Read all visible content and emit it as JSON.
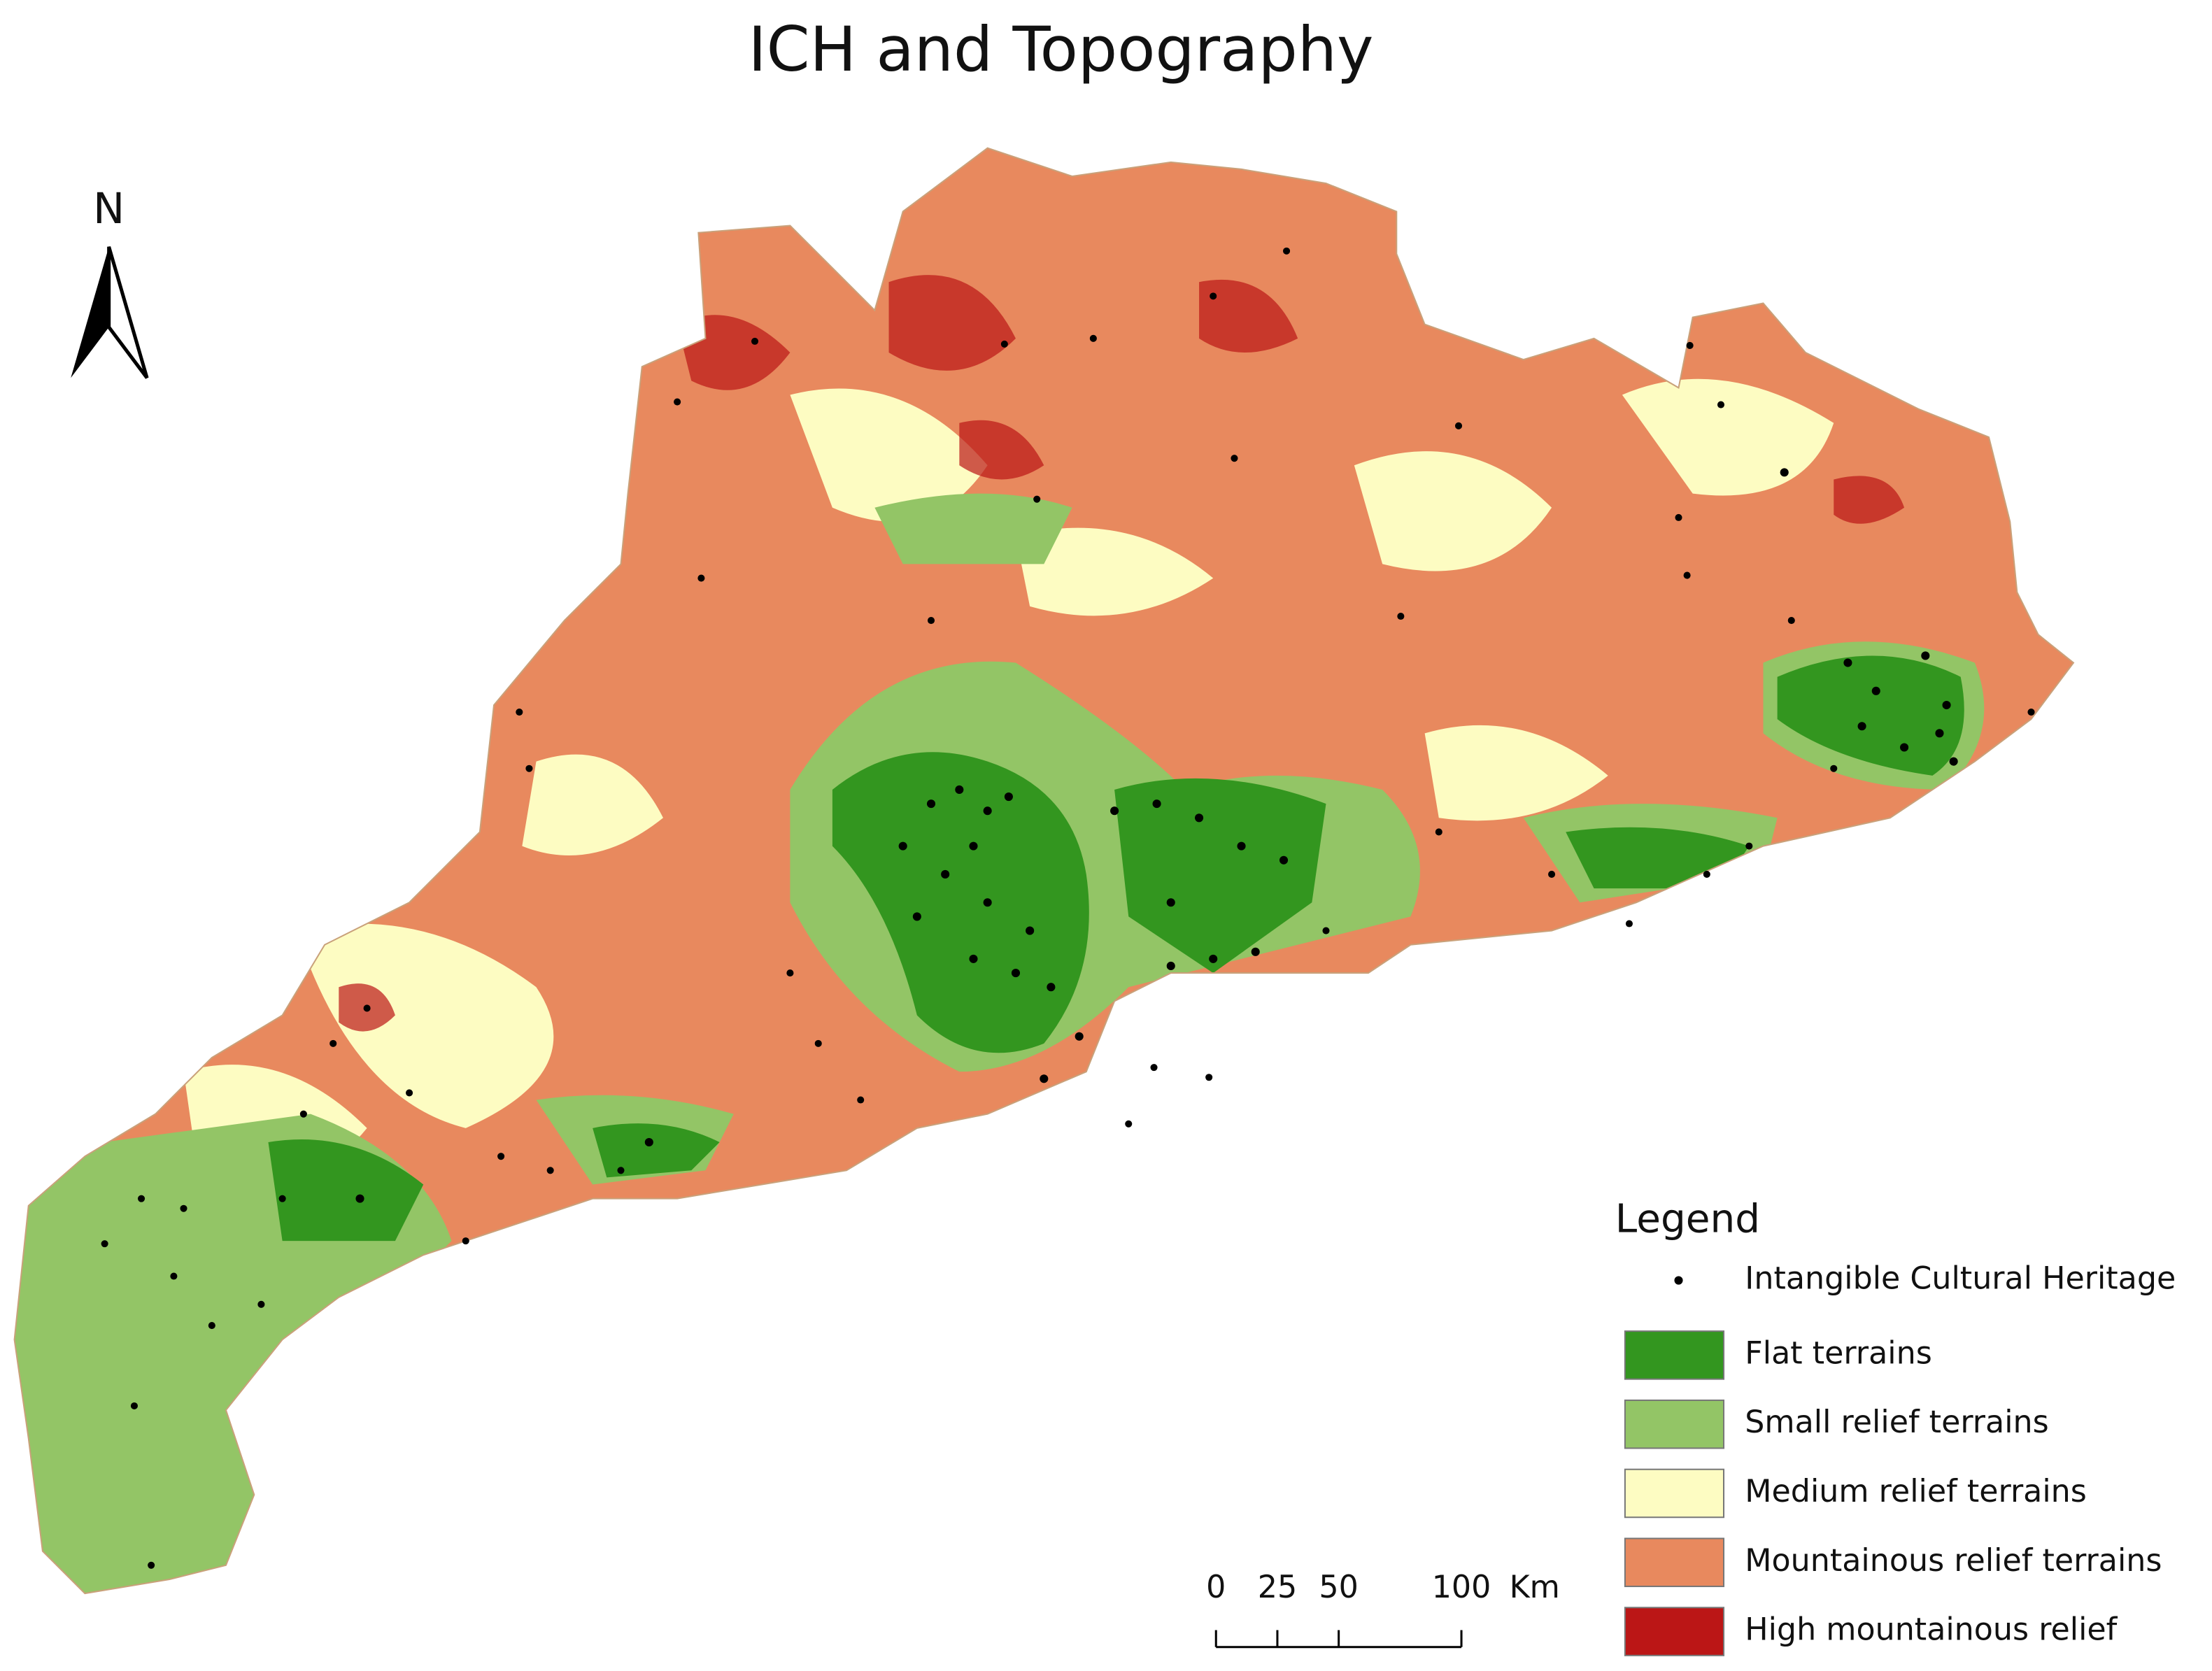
{
  "title": "ICH and Topography",
  "north_arrow": {
    "label": "N"
  },
  "legend": {
    "title": "Legend",
    "point": {
      "label": "Intangible Cultural Heritage",
      "color": "#000000"
    },
    "classes": [
      {
        "label": "Flat terrains",
        "color": "#33961f"
      },
      {
        "label": "Small relief terrains",
        "color": "#93c566"
      },
      {
        "label": "Medium relief terrains",
        "color": "#fdfcc2"
      },
      {
        "label": "Mountainous relief terrains",
        "color": "#e8895e"
      },
      {
        "label": "High mountainous relief",
        "color": "#bb1616"
      }
    ]
  },
  "scale_bar": {
    "ticks": [
      0,
      25,
      50,
      100
    ],
    "unit": "Km"
  }
}
